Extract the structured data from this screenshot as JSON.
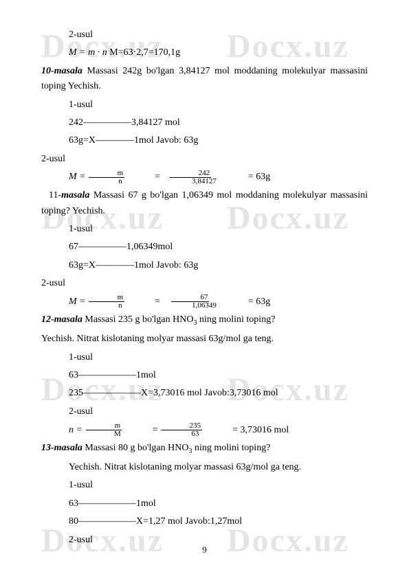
{
  "watermark": "Docx.uz",
  "page_number": "9",
  "lines": {
    "l1": "2-usul",
    "l2a": "M = m · n",
    "l2b": " M=63·2,7=170,1g",
    "l3a": "10-masala",
    "l3b": " Massasi 242g bo'lgan 3,84127 mol moddaning molekulyar massasini toping Yechish.",
    "l4": "1-usul",
    "l5": "242—————3,84127 mol",
    "l6": "63g=X————1mol                          Javob: 63g",
    "l7": "2-usul",
    "l8_pre": "M = ",
    "l8_f1n": "m",
    "l8_f1d": "n",
    "l8_eq": " = ",
    "l8_f2n": "242",
    "l8_f2d": "3,84127",
    "l8_post": " = 63g",
    "l9a": "-masala",
    "l9pre": "11",
    "l9b": " Massasi 67 g bo'lgan 1,06349 mol moddaning molekulyar massasini toping? Yechish.",
    "l10": "1-usul",
    "l11": "67—————1,06349mol",
    "l12": "63g=X————1mol                        Javob: 63g",
    "l13": "2-usul",
    "l14_pre": "M = ",
    "l14_f1n": "m",
    "l14_f1d": "n",
    "l14_eq": " = ",
    "l14_f2n": "67",
    "l14_f2d": "1,06349",
    "l14_post": " = 63g",
    "l15a": "12-masala",
    "l15b": " Massasi 235 g bo'lgan HNO",
    "l15c": " ning molini toping?",
    "l16": "Yechish. Nitrat kislotaning molyar massasi 63g/mol ga teng.",
    "l17": "1-usul",
    "l18": "63——————1mol",
    "l19": "235——————X=3,73016 mol                        Javob:3,73016 mol",
    "l20": "2-usul",
    "l21_pre": "n = ",
    "l21_f1n": "m",
    "l21_f1d": "M",
    "l21_eq": " = ",
    "l21_f2n": "235",
    "l21_f2d": "63",
    "l21_post": " = 3,73016 mol",
    "l22a": "13-masala",
    "l22b": " Massasi 80 g bo'lgan HNO",
    "l22c": " ning molini toping?",
    "l23": "Yechish. Nitrat kislotaning molyar massasi 63g/mol ga teng.",
    "l24": "1-usul",
    "l25": "63——————1mol",
    "l26": "80——————X=1,27 mol                               Javob:1,27mol",
    "l27": "2-usul",
    "sub3": "3"
  }
}
